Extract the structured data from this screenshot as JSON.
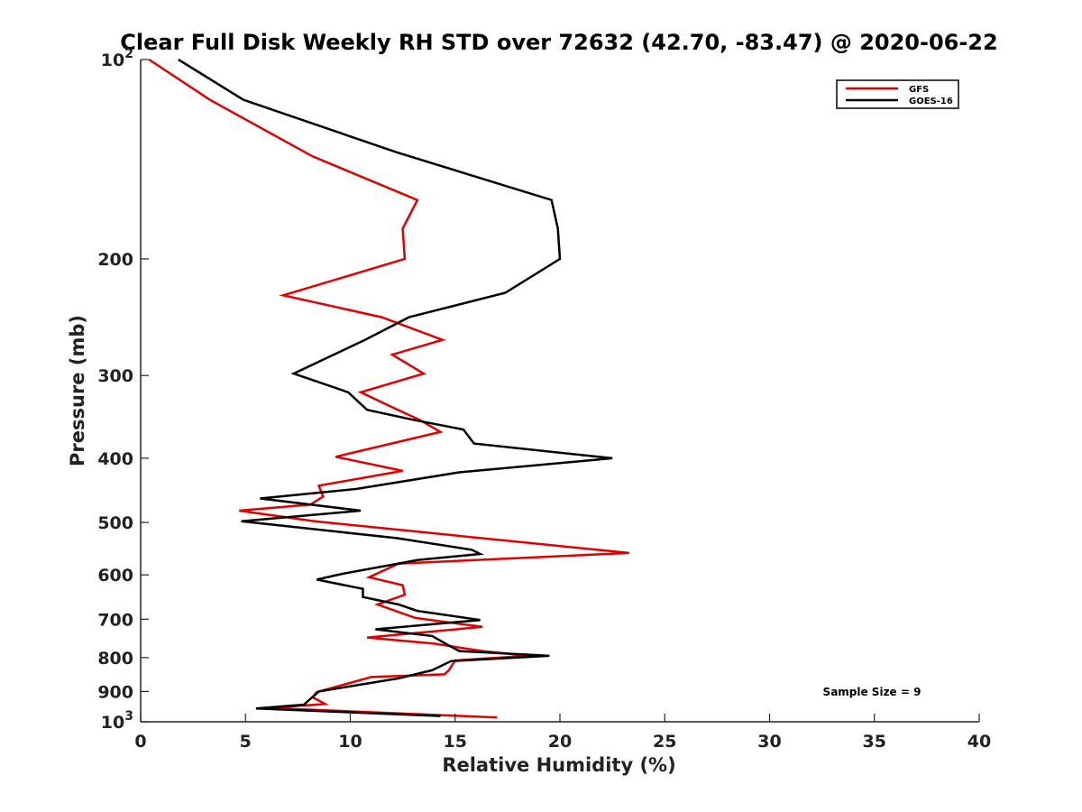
{
  "chart_data": {
    "type": "line",
    "title": "Clear Full Disk Weekly RH STD over 72632 (42.70, -83.47) @ 2020-06-22",
    "xlabel": "Relative Humidity (%)",
    "ylabel": "Pressure (mb)",
    "xlim": [
      0,
      40
    ],
    "ylim": [
      1000,
      100
    ],
    "yscale": "log",
    "y_reversed": true,
    "xticks": [
      "0",
      "5",
      "10",
      "15",
      "20",
      "25",
      "30",
      "35",
      "40"
    ],
    "yticks": [
      {
        "value": 100,
        "label": "10",
        "sup": "2"
      },
      {
        "value": 200,
        "label": "200",
        "sup": ""
      },
      {
        "value": 300,
        "label": "300",
        "sup": ""
      },
      {
        "value": 400,
        "label": "400",
        "sup": ""
      },
      {
        "value": 500,
        "label": "500",
        "sup": ""
      },
      {
        "value": 600,
        "label": "600",
        "sup": ""
      },
      {
        "value": 700,
        "label": "700",
        "sup": ""
      },
      {
        "value": 800,
        "label": "800",
        "sup": ""
      },
      {
        "value": 900,
        "label": "900",
        "sup": ""
      },
      {
        "value": 1000,
        "label": "10",
        "sup": "3"
      }
    ],
    "grid": false,
    "legend_position": "top-right",
    "annotation": "Sample Size = 9",
    "series": [
      {
        "name": "GFS",
        "color": "#e00000",
        "points": [
          [
            0.4,
            100
          ],
          [
            3.3,
            115
          ],
          [
            8.2,
            140
          ],
          [
            13.2,
            163
          ],
          [
            12.5,
            180
          ],
          [
            12.6,
            200
          ],
          [
            6.8,
            227
          ],
          [
            11.5,
            245
          ],
          [
            14.4,
            265
          ],
          [
            12.0,
            279
          ],
          [
            13.5,
            298
          ],
          [
            10.5,
            318
          ],
          [
            12.0,
            335
          ],
          [
            13.3,
            350
          ],
          [
            14.3,
            365
          ],
          [
            9.3,
            398
          ],
          [
            12.5,
            418
          ],
          [
            8.5,
            440
          ],
          [
            8.7,
            457
          ],
          [
            8.1,
            470
          ],
          [
            4.7,
            480
          ],
          [
            8.3,
            498
          ],
          [
            18.8,
            538
          ],
          [
            23.3,
            556
          ],
          [
            12.3,
            577
          ],
          [
            10.9,
            605
          ],
          [
            12.5,
            622
          ],
          [
            12.6,
            643
          ],
          [
            11.3,
            665
          ],
          [
            13.1,
            697
          ],
          [
            16.3,
            719
          ],
          [
            10.8,
            746
          ],
          [
            14.0,
            762
          ],
          [
            16.3,
            782
          ],
          [
            18.5,
            795
          ],
          [
            15.0,
            808
          ],
          [
            14.7,
            836
          ],
          [
            14.5,
            848
          ],
          [
            11.0,
            856
          ],
          [
            8.4,
            902
          ],
          [
            8.2,
            918
          ],
          [
            8.8,
            940
          ],
          [
            6.1,
            953
          ],
          [
            17.0,
            985
          ]
        ]
      },
      {
        "name": "GOES-16",
        "color": "#000000",
        "points": [
          [
            1.8,
            100
          ],
          [
            4.9,
            115
          ],
          [
            12.2,
            138
          ],
          [
            19.6,
            163
          ],
          [
            19.9,
            180
          ],
          [
            20.0,
            200
          ],
          [
            17.4,
            225
          ],
          [
            12.8,
            245
          ],
          [
            10.7,
            265
          ],
          [
            7.3,
            298
          ],
          [
            9.9,
            318
          ],
          [
            10.8,
            338
          ],
          [
            13.0,
            350
          ],
          [
            15.4,
            362
          ],
          [
            15.9,
            380
          ],
          [
            22.5,
            400
          ],
          [
            15.2,
            420
          ],
          [
            10.3,
            445
          ],
          [
            5.7,
            460
          ],
          [
            10.5,
            480
          ],
          [
            4.8,
            498
          ],
          [
            12.2,
            528
          ],
          [
            15.8,
            550
          ],
          [
            16.2,
            558
          ],
          [
            13.2,
            570
          ],
          [
            9.6,
            598
          ],
          [
            8.4,
            610
          ],
          [
            10.6,
            630
          ],
          [
            10.6,
            648
          ],
          [
            12.3,
            665
          ],
          [
            13.2,
            680
          ],
          [
            16.2,
            702
          ],
          [
            11.2,
            725
          ],
          [
            13.9,
            742
          ],
          [
            14.8,
            770
          ],
          [
            15.2,
            782
          ],
          [
            19.5,
            795
          ],
          [
            14.8,
            810
          ],
          [
            13.9,
            836
          ],
          [
            12.3,
            860
          ],
          [
            8.5,
            900
          ],
          [
            7.9,
            935
          ],
          [
            7.8,
            942
          ],
          [
            5.5,
            955
          ],
          [
            14.3,
            980
          ]
        ]
      }
    ]
  }
}
